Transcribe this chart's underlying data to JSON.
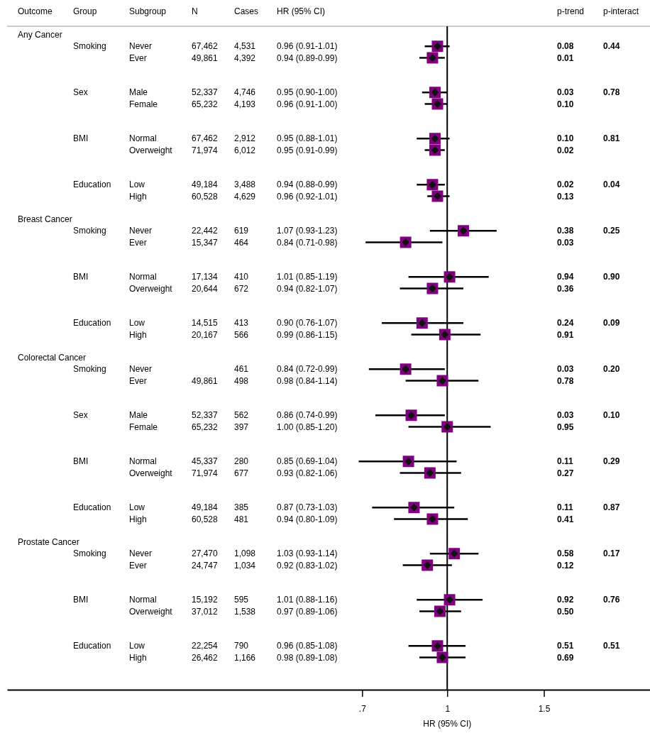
{
  "chart_data": {
    "type": "scatter",
    "orientation": "horizontal",
    "log": "x",
    "color": "#800080",
    "marker": "square",
    "xlabel": "HR (95% CI)",
    "xlim": [
      0.158,
      2.34
    ],
    "xticks": [
      {
        "value": 0.7,
        "label": ".7"
      },
      {
        "value": 1,
        "label": "1"
      },
      {
        "value": 1.5,
        "label": "1.5"
      }
    ],
    "ref_lines": [
      {
        "axis": "x",
        "value": 1
      }
    ],
    "categories": [
      null,
      "Never",
      "Ever",
      null,
      null,
      "Male",
      "Female",
      null,
      null,
      "Normal",
      "Overweight",
      null,
      null,
      "Low",
      "High",
      null,
      null,
      "Never",
      "Ever",
      null,
      null,
      "Normal",
      "Overweight",
      null,
      null,
      "Low",
      "High",
      null,
      null,
      "Never",
      "Ever",
      null,
      null,
      "Male",
      "Female",
      null,
      null,
      "Normal",
      "Overweight",
      null,
      null,
      "Low",
      "High",
      null,
      null,
      "Never",
      "Ever",
      null,
      null,
      "Normal",
      "Overweight",
      null,
      null,
      "Low",
      "High"
    ],
    "values": [
      null,
      0.96,
      0.94,
      null,
      null,
      0.95,
      0.96,
      null,
      null,
      0.95,
      0.95,
      null,
      null,
      0.94,
      0.96,
      null,
      null,
      1.07,
      0.84,
      null,
      null,
      1.01,
      0.94,
      null,
      null,
      0.9,
      0.99,
      null,
      null,
      0.84,
      0.98,
      null,
      null,
      0.86,
      1.0,
      null,
      null,
      0.85,
      0.93,
      null,
      null,
      0.87,
      0.94,
      null,
      null,
      1.03,
      0.92,
      null,
      null,
      1.01,
      0.97,
      null,
      null,
      0.96,
      0.98
    ],
    "errors": [
      null,
      [
        0.91,
        1.01
      ],
      [
        0.89,
        0.99
      ],
      null,
      null,
      [
        0.9,
        1.0
      ],
      [
        0.91,
        1.0
      ],
      null,
      null,
      [
        0.88,
        1.01
      ],
      [
        0.91,
        0.99
      ],
      null,
      null,
      [
        0.88,
        0.99
      ],
      [
        0.92,
        1.01
      ],
      null,
      null,
      [
        0.93,
        1.23
      ],
      [
        0.71,
        0.98
      ],
      null,
      null,
      [
        0.85,
        1.19
      ],
      [
        0.82,
        1.07
      ],
      null,
      null,
      [
        0.76,
        1.07
      ],
      [
        0.86,
        1.15
      ],
      null,
      null,
      [
        0.72,
        0.99
      ],
      [
        0.84,
        1.14
      ],
      null,
      null,
      [
        0.74,
        0.99
      ],
      [
        0.85,
        1.2
      ],
      null,
      null,
      [
        0.69,
        1.04
      ],
      [
        0.82,
        1.06
      ],
      null,
      null,
      [
        0.73,
        1.03
      ],
      [
        0.8,
        1.09
      ],
      null,
      null,
      [
        0.93,
        1.14
      ],
      [
        0.83,
        1.02
      ],
      null,
      null,
      [
        0.88,
        1.16
      ],
      [
        0.89,
        1.06
      ],
      null,
      null,
      [
        0.85,
        1.08
      ],
      [
        0.89,
        1.08
      ]
    ],
    "annotations": [
      "Outcome",
      "Group",
      "Subgroup",
      "N",
      "Cases",
      "HR (95% CI)",
      "p-trend",
      "p-interact",
      "Any Cancer",
      null,
      null,
      null,
      null,
      null,
      null,
      null,
      "Smoking",
      "67,462",
      "4,531",
      "0.96 (0.91-1.01)",
      "0.08",
      "0.44",
      null,
      null,
      "49,861",
      "4,392",
      "0.94 (0.89-0.99)",
      "0.01",
      null,
      null,
      null,
      null,
      null,
      null,
      null,
      null,
      null,
      null,
      null,
      null,
      null,
      null,
      null,
      null,
      "Sex",
      "52,337",
      "4,746",
      "0.95 (0.90-1.00)",
      "0.03",
      "0.78",
      null,
      null,
      "65,232",
      "4,193",
      "0.96 (0.91-1.00)",
      "0.10",
      null,
      null,
      null,
      null,
      null,
      null,
      null,
      null,
      null,
      null,
      null,
      null,
      null,
      null,
      null,
      null,
      "BMI",
      "67,462",
      "2,912",
      "0.95 (0.88-1.01)",
      "0.10",
      "0.81",
      null,
      null,
      "71,974",
      "6,012",
      "0.95 (0.91-0.99)",
      "0.02",
      null,
      null,
      null,
      null,
      null,
      null,
      null,
      null,
      null,
      null,
      null,
      null,
      null,
      null,
      null,
      null,
      "Education",
      "49,184",
      "3,488",
      "0.94 (0.88-0.99)",
      "0.02",
      "0.04",
      null,
      null,
      "60,528",
      "4,629",
      "0.96 (0.92-1.01)",
      "0.13",
      null,
      null,
      null,
      null,
      null,
      null,
      null,
      null,
      "Breast Cancer",
      null,
      null,
      null,
      null,
      null,
      null,
      null,
      "Smoking",
      "22,442",
      "619",
      "1.07 (0.93-1.23)",
      "0.38",
      "0.25",
      null,
      null,
      "15,347",
      "464",
      "0.84 (0.71-0.98)",
      "0.03",
      null,
      null,
      null,
      null,
      null,
      null,
      null,
      null,
      null,
      null,
      null,
      null,
      null,
      null,
      null,
      null,
      "BMI",
      "17,134",
      "410",
      "1.01 (0.85-1.19)",
      "0.94",
      "0.90",
      null,
      null,
      "20,644",
      "672",
      "0.94 (0.82-1.07)",
      "0.36",
      null,
      null,
      null,
      null,
      null,
      null,
      null,
      null,
      null,
      null,
      null,
      null,
      null,
      null,
      null,
      null,
      "Education",
      "14,515",
      "413",
      "0.90 (0.76-1.07)",
      "0.24",
      "0.09",
      null,
      null,
      "20,167",
      "566",
      "0.99 (0.86-1.15)",
      "0.91",
      null,
      null,
      null,
      null,
      null,
      null,
      null,
      null,
      "Colorectal Cancer",
      null,
      null,
      null,
      null,
      null,
      null,
      null,
      "Smoking",
      null,
      "461",
      "0.84 (0.72-0.99)",
      "0.03",
      "0.20",
      null,
      null,
      "49,861",
      "498",
      "0.98 (0.84-1.14)",
      "0.78",
      null,
      null,
      null,
      null,
      null,
      null,
      null,
      null,
      null,
      null,
      null,
      null,
      null,
      null,
      null,
      null,
      "Sex",
      "52,337",
      "562",
      "0.86 (0.74-0.99)",
      "0.03",
      "0.10",
      null,
      null,
      "65,232",
      "397",
      "1.00 (0.85-1.20)",
      "0.95",
      null,
      null,
      null,
      null,
      null,
      null,
      null,
      null,
      null,
      null,
      null,
      null,
      null,
      null,
      null,
      null,
      "BMI",
      "45,337",
      "280",
      "0.85 (0.69-1.04)",
      "0.11",
      "0.29",
      null,
      null,
      "71,974",
      "677",
      "0.93 (0.82-1.06)",
      "0.27",
      null,
      null,
      null,
      null,
      null,
      null,
      null,
      null,
      null,
      null,
      null,
      null,
      null,
      null,
      null,
      null,
      "Education",
      "49,184",
      "385",
      "0.87 (0.73-1.03)",
      "0.11",
      "0.87",
      null,
      null,
      "60,528",
      "481",
      "0.94 (0.80-1.09)",
      "0.41",
      null,
      null,
      null,
      null,
      null,
      null,
      null,
      null,
      "Prostate Cancer",
      null,
      null,
      null,
      null,
      null,
      null,
      null,
      "Smoking",
      "27,470",
      "1,098",
      "1.03 (0.93-1.14)",
      "0.58",
      "0.17",
      null,
      null,
      "24,747",
      "1,034",
      "0.92 (0.83-1.02)",
      "0.12",
      null,
      null,
      null,
      null,
      null,
      null,
      null,
      null,
      null,
      null,
      null,
      null,
      null,
      null,
      null,
      null,
      "BMI",
      "15,192",
      "595",
      "1.01 (0.88-1.16)",
      "0.92",
      "0.76",
      null,
      null,
      "37,012",
      "1,538",
      "0.97 (0.89-1.06)",
      "0.50",
      null,
      null,
      null,
      null,
      null,
      null,
      null,
      null,
      null,
      null,
      null,
      null,
      null,
      null,
      null,
      null,
      "Education",
      "22,254",
      "790",
      "0.96 (0.85-1.08)",
      "0.51",
      "0.51",
      null,
      null,
      "26,462",
      "1,166",
      "0.98 (0.89-1.08)",
      "0.69",
      null
    ]
  }
}
